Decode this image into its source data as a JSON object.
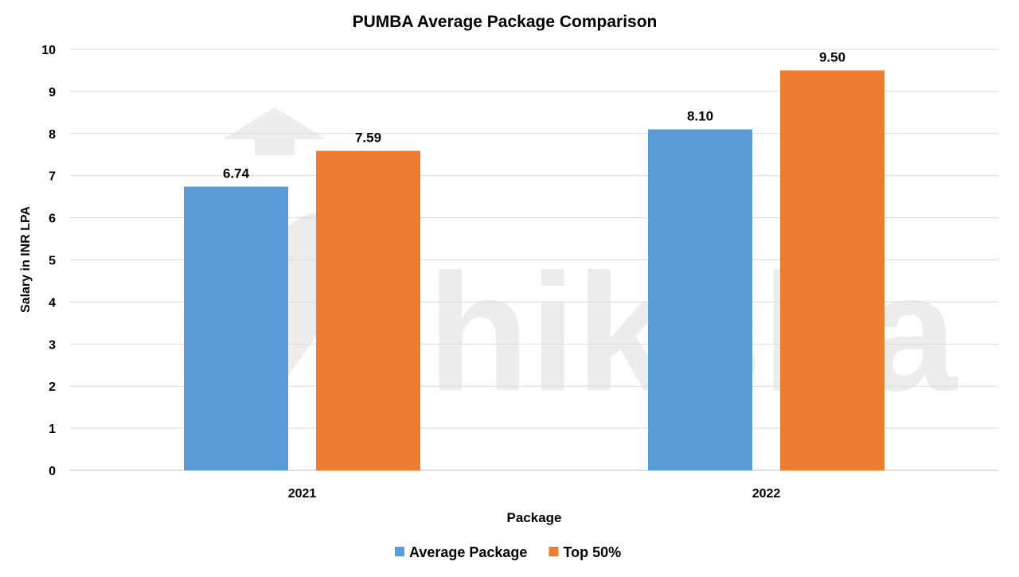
{
  "chart_data": {
    "type": "bar",
    "title": "PUMBA Average Package Comparison",
    "xlabel": "Package",
    "ylabel": "Salary in INR LPA",
    "categories": [
      "2021",
      "2022"
    ],
    "series": [
      {
        "name": "Average Package",
        "values": [
          6.74,
          8.1
        ],
        "labels": [
          "6.74",
          "8.10"
        ],
        "color": "#5B9BD5"
      },
      {
        "name": "Top 50%",
        "values": [
          7.59,
          9.5
        ],
        "labels": [
          "7.59",
          "9.50"
        ],
        "color": "#ED7D31"
      }
    ],
    "ylim": [
      0,
      10
    ],
    "yticks": [
      "0",
      "1",
      "2",
      "3",
      "4",
      "5",
      "6",
      "7",
      "8",
      "9",
      "10"
    ],
    "grid": true,
    "legend": "bottom",
    "watermark": "shiksha"
  }
}
